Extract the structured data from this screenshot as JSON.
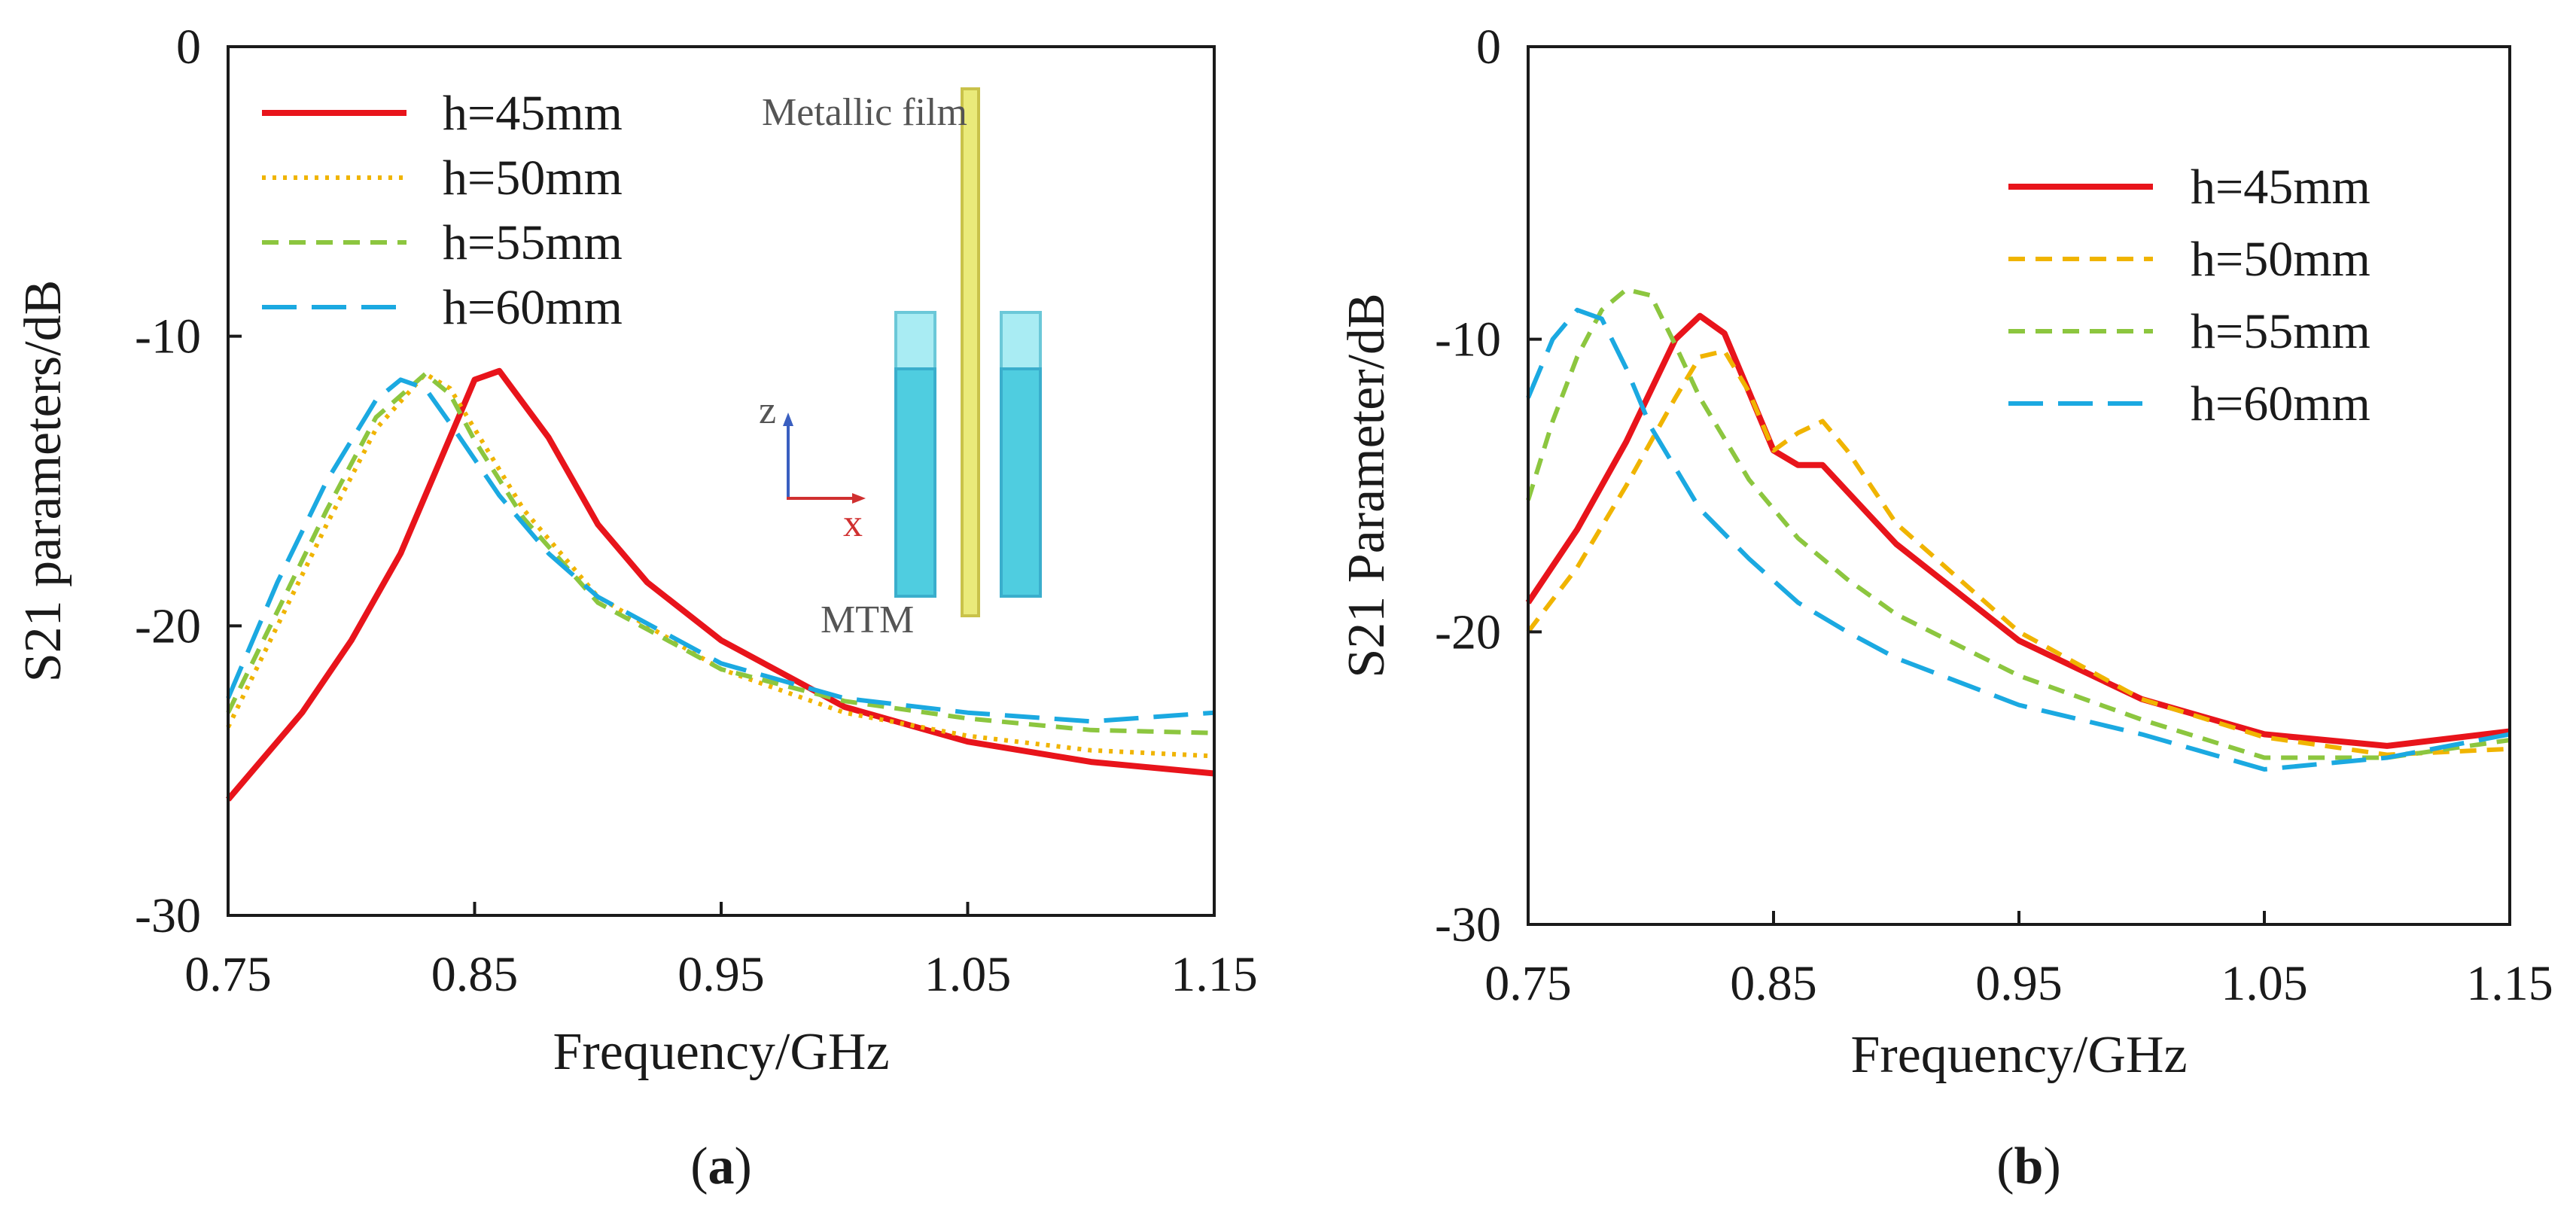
{
  "chart_data": [
    {
      "type": "line",
      "panel_label": "a",
      "xlabel": "Frequency/GHz",
      "ylabel": "S21 parameters/dB",
      "xlim": [
        0.75,
        1.15
      ],
      "ylim": [
        -30,
        0
      ],
      "x_ticks": [
        "0.75",
        "0.85",
        "0.95",
        "1.05",
        "1.15"
      ],
      "y_ticks": [
        "0",
        "-10",
        "-20",
        "-30"
      ],
      "grid": false,
      "legend_position": "top-left",
      "inset": {
        "label_top": "Metallic film",
        "label_bottom": "MTM",
        "axis_z": "z",
        "axis_x": "x"
      },
      "series": [
        {
          "name": "h=45mm",
          "color": "#e8141b",
          "dash": "solid",
          "x": [
            0.75,
            0.78,
            0.8,
            0.82,
            0.84,
            0.85,
            0.86,
            0.88,
            0.9,
            0.92,
            0.95,
            1.0,
            1.05,
            1.1,
            1.15
          ],
          "y": [
            -26.0,
            -23.0,
            -20.5,
            -17.5,
            -13.5,
            -11.5,
            -11.2,
            -13.5,
            -16.5,
            -18.5,
            -20.5,
            -22.8,
            -24.0,
            -24.7,
            -25.1
          ]
        },
        {
          "name": "h=50mm",
          "color": "#f0b400",
          "dash": "dotted",
          "x": [
            0.75,
            0.77,
            0.79,
            0.81,
            0.83,
            0.84,
            0.85,
            0.87,
            0.9,
            0.95,
            1.0,
            1.05,
            1.1,
            1.15
          ],
          "y": [
            -23.5,
            -20.0,
            -16.5,
            -13.2,
            -11.3,
            -11.8,
            -13.2,
            -16.0,
            -19.0,
            -21.5,
            -23.0,
            -23.8,
            -24.3,
            -24.5
          ]
        },
        {
          "name": "h=55mm",
          "color": "#8cc63f",
          "dash": "dashed",
          "x": [
            0.75,
            0.77,
            0.79,
            0.81,
            0.83,
            0.84,
            0.85,
            0.87,
            0.9,
            0.95,
            1.0,
            1.05,
            1.1,
            1.15
          ],
          "y": [
            -23.0,
            -19.5,
            -16.0,
            -12.8,
            -11.3,
            -12.0,
            -13.6,
            -16.3,
            -19.2,
            -21.5,
            -22.6,
            -23.2,
            -23.6,
            -23.7
          ]
        },
        {
          "name": "h=60mm",
          "color": "#1ba9e1",
          "dash": "longdash",
          "x": [
            0.75,
            0.77,
            0.79,
            0.81,
            0.82,
            0.83,
            0.84,
            0.86,
            0.88,
            0.9,
            0.95,
            1.0,
            1.05,
            1.1,
            1.15
          ],
          "y": [
            -22.5,
            -18.5,
            -15.0,
            -12.2,
            -11.5,
            -11.8,
            -13.0,
            -15.5,
            -17.5,
            -19.0,
            -21.3,
            -22.5,
            -23.0,
            -23.3,
            -23.0
          ]
        }
      ]
    },
    {
      "type": "line",
      "panel_label": "b",
      "xlabel": "Frequency/GHz",
      "ylabel": "S21 Parameter/dB",
      "xlim": [
        0.75,
        1.15
      ],
      "ylim": [
        -30,
        0
      ],
      "x_ticks": [
        "0.75",
        "0.85",
        "0.95",
        "1.05",
        "1.15"
      ],
      "y_ticks": [
        "0",
        "-10",
        "-20",
        "-30"
      ],
      "grid": false,
      "legend_position": "top-right",
      "series": [
        {
          "name": "h=45mm",
          "color": "#e8141b",
          "dash": "solid",
          "x": [
            0.75,
            0.77,
            0.79,
            0.81,
            0.82,
            0.83,
            0.84,
            0.85,
            0.86,
            0.87,
            0.88,
            0.9,
            0.95,
            1.0,
            1.05,
            1.1,
            1.15
          ],
          "y": [
            -19.0,
            -16.5,
            -13.5,
            -10.0,
            -9.2,
            -9.8,
            -11.8,
            -13.8,
            -14.3,
            -14.3,
            -15.2,
            -17.0,
            -20.3,
            -22.3,
            -23.5,
            -23.9,
            -23.4
          ]
        },
        {
          "name": "h=50mm",
          "color": "#f0b400",
          "dash": "dashed",
          "x": [
            0.75,
            0.77,
            0.79,
            0.81,
            0.82,
            0.83,
            0.84,
            0.85,
            0.86,
            0.87,
            0.88,
            0.9,
            0.95,
            1.0,
            1.05,
            1.1,
            1.15
          ],
          "y": [
            -20.0,
            -17.8,
            -15.0,
            -12.0,
            -10.6,
            -10.4,
            -11.8,
            -13.8,
            -13.2,
            -12.8,
            -13.8,
            -16.3,
            -20.0,
            -22.3,
            -23.6,
            -24.2,
            -24.0
          ]
        },
        {
          "name": "h=55mm",
          "color": "#8cc63f",
          "dash": "dashed",
          "x": [
            0.75,
            0.76,
            0.77,
            0.78,
            0.79,
            0.8,
            0.81,
            0.82,
            0.84,
            0.86,
            0.88,
            0.9,
            0.95,
            1.0,
            1.05,
            1.1,
            1.15
          ],
          "y": [
            -15.5,
            -12.8,
            -10.6,
            -9.0,
            -8.3,
            -8.5,
            -10.2,
            -12.0,
            -14.8,
            -16.8,
            -18.2,
            -19.4,
            -21.5,
            -23.0,
            -24.3,
            -24.3,
            -23.7
          ]
        },
        {
          "name": "h=60mm",
          "color": "#1ba9e1",
          "dash": "longdash",
          "x": [
            0.75,
            0.76,
            0.77,
            0.78,
            0.79,
            0.8,
            0.82,
            0.84,
            0.86,
            0.88,
            0.9,
            0.95,
            1.0,
            1.05,
            1.1,
            1.15
          ],
          "y": [
            -12.0,
            -10.0,
            -9.0,
            -9.3,
            -11.0,
            -13.0,
            -15.8,
            -17.5,
            -19.0,
            -20.0,
            -20.9,
            -22.5,
            -23.5,
            -24.7,
            -24.3,
            -23.5
          ]
        }
      ]
    }
  ]
}
